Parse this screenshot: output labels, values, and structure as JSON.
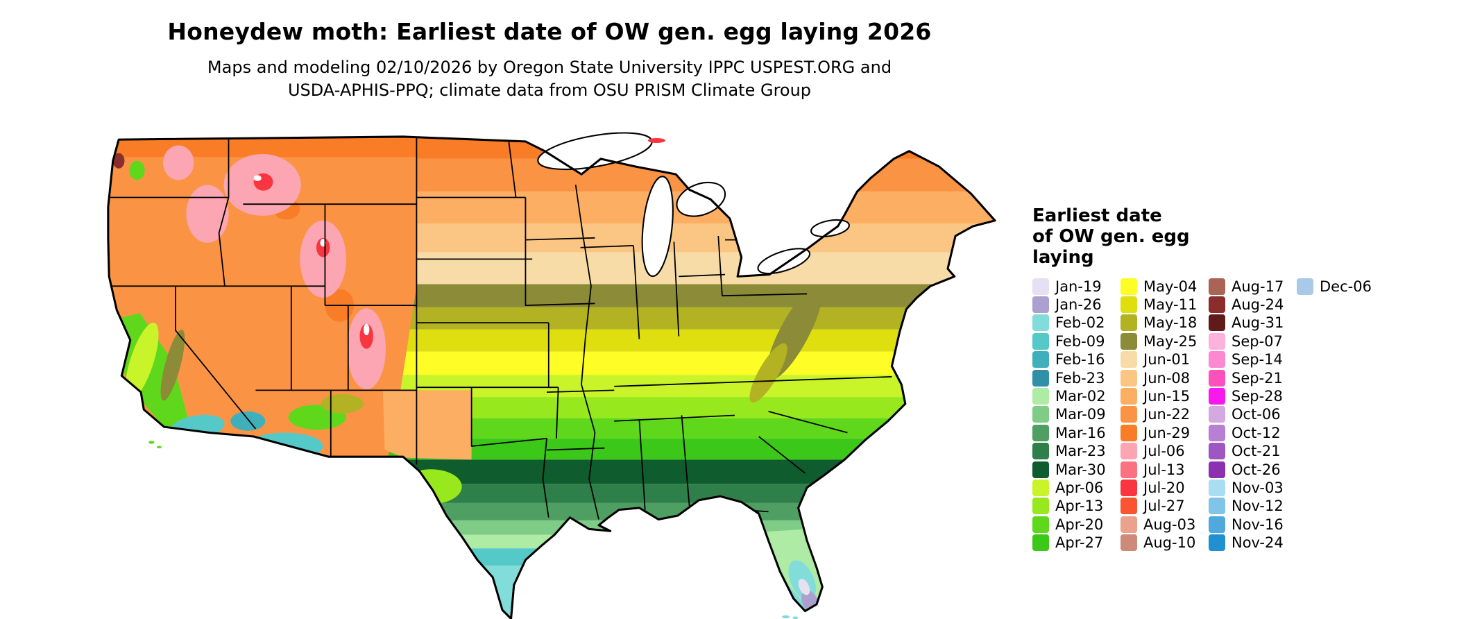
{
  "header": {
    "title": "Honeydew moth: Earliest date of OW gen. egg laying 2026",
    "subtitle_line1": "Maps and modeling 02/10/2026 by Oregon State University IPPC USPEST.ORG and",
    "subtitle_line2": "USDA-APHIS-PPQ; climate data from OSU PRISM Climate Group"
  },
  "legend": {
    "title_lines": [
      "Earliest date",
      "of OW gen. egg",
      "laying"
    ],
    "columns": [
      [
        {
          "label": "Jan-19",
          "color": "#E6E0F3"
        },
        {
          "label": "Jan-26",
          "color": "#ABA0D0"
        },
        {
          "label": "Feb-02",
          "color": "#82DCDA"
        },
        {
          "label": "Feb-09",
          "color": "#55C8C8"
        },
        {
          "label": "Feb-16",
          "color": "#3FAFBC"
        },
        {
          "label": "Feb-23",
          "color": "#3090A8"
        },
        {
          "label": "Mar-02",
          "color": "#AEEBA5"
        },
        {
          "label": "Mar-09",
          "color": "#7FCC87"
        },
        {
          "label": "Mar-16",
          "color": "#4F9F63"
        },
        {
          "label": "Mar-23",
          "color": "#2E7F49"
        },
        {
          "label": "Mar-30",
          "color": "#0F5C2E"
        },
        {
          "label": "Apr-06",
          "color": "#C9F42A"
        },
        {
          "label": "Apr-13",
          "color": "#98E81E"
        },
        {
          "label": "Apr-20",
          "color": "#5FD81C"
        },
        {
          "label": "Apr-27",
          "color": "#3BC818"
        }
      ],
      [
        {
          "label": "May-04",
          "color": "#FEFE26"
        },
        {
          "label": "May-11",
          "color": "#DFDF10"
        },
        {
          "label": "May-18",
          "color": "#B2B222"
        },
        {
          "label": "May-25",
          "color": "#8B8B38"
        },
        {
          "label": "Jun-01",
          "color": "#F7DCA7"
        },
        {
          "label": "Jun-08",
          "color": "#FBC684"
        },
        {
          "label": "Jun-15",
          "color": "#FCAE63"
        },
        {
          "label": "Jun-22",
          "color": "#FA9444"
        },
        {
          "label": "Jun-29",
          "color": "#F87D26"
        },
        {
          "label": "Jul-06",
          "color": "#FBA6B2"
        },
        {
          "label": "Jul-13",
          "color": "#FA7280"
        },
        {
          "label": "Jul-20",
          "color": "#F93540"
        },
        {
          "label": "Jul-27",
          "color": "#F85530"
        },
        {
          "label": "Aug-03",
          "color": "#EAA28D"
        },
        {
          "label": "Aug-10",
          "color": "#CD8A79"
        }
      ],
      [
        {
          "label": "Aug-17",
          "color": "#AA6456"
        },
        {
          "label": "Aug-24",
          "color": "#8B2D2D"
        },
        {
          "label": "Aug-31",
          "color": "#601A1A"
        },
        {
          "label": "Sep-07",
          "color": "#FCB2DD"
        },
        {
          "label": "Sep-14",
          "color": "#FC88CF"
        },
        {
          "label": "Sep-21",
          "color": "#FC50BD"
        },
        {
          "label": "Sep-28",
          "color": "#F918ED"
        },
        {
          "label": "Oct-06",
          "color": "#D4A9E1"
        },
        {
          "label": "Oct-12",
          "color": "#B780D2"
        },
        {
          "label": "Oct-21",
          "color": "#9D56C2"
        },
        {
          "label": "Oct-26",
          "color": "#8B30B1"
        },
        {
          "label": "Nov-03",
          "color": "#A9DDF1"
        },
        {
          "label": "Nov-12",
          "color": "#80C5E9"
        },
        {
          "label": "Nov-16",
          "color": "#50A9DD"
        },
        {
          "label": "Nov-24",
          "color": "#2090D1"
        }
      ],
      [
        {
          "label": "Dec-06",
          "color": "#A9C9E9"
        }
      ]
    ]
  },
  "map": {
    "region": "Continental United States",
    "bands_north_to_south": [
      "Jun-29",
      "Jun-22",
      "Jun-15",
      "Jun-08",
      "Jun-01",
      "May-25",
      "May-18",
      "May-11",
      "May-04",
      "Apr-06",
      "Apr-13",
      "Apr-20",
      "Apr-27",
      "Mar-30",
      "Mar-23",
      "Mar-16",
      "Mar-09",
      "Mar-02",
      "Feb-09",
      "Feb-02"
    ]
  }
}
